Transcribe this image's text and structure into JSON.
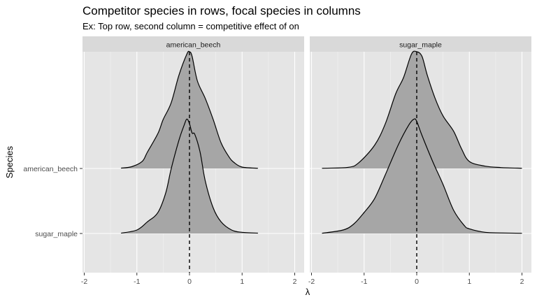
{
  "chart_data": {
    "type": "ridgeline",
    "title": "Competitor species in rows, focal species in columns",
    "subtitle": "Ex: Top row, second column = competitive effect of on",
    "xlabel": "λ",
    "ylabel": "Species",
    "xlim": [
      -2,
      2
    ],
    "x_ticks": [
      -2,
      -1,
      0,
      1,
      2
    ],
    "y_categories": [
      "american_beech",
      "sugar_maple"
    ],
    "facets": [
      "american_beech",
      "sugar_maple"
    ],
    "reference_line_x": 0,
    "fill_color": "#a6a6a6",
    "panel_background": "#e5e5e5",
    "strip_background": "#d9d9d9",
    "densities": [
      {
        "facet": "american_beech",
        "competitor": "american_beech",
        "x": [
          -1.3,
          -1.1,
          -0.9,
          -0.8,
          -0.6,
          -0.5,
          -0.35,
          -0.2,
          -0.05,
          0,
          0.05,
          0.15,
          0.3,
          0.45,
          0.6,
          0.75,
          0.85,
          1.0,
          1.3
        ],
        "density": [
          0.003,
          0.015,
          0.06,
          0.14,
          0.3,
          0.42,
          0.56,
          0.8,
          0.98,
          1.0,
          0.96,
          0.75,
          0.6,
          0.42,
          0.22,
          0.1,
          0.05,
          0.012,
          0.002
        ]
      },
      {
        "facet": "american_beech",
        "competitor": "sugar_maple",
        "x": [
          -1.3,
          -1.0,
          -0.8,
          -0.6,
          -0.45,
          -0.35,
          -0.2,
          -0.1,
          -0.05,
          0,
          0.05,
          0.1,
          0.2,
          0.3,
          0.45,
          0.6,
          0.8,
          1.0,
          1.3
        ],
        "density": [
          0.003,
          0.03,
          0.1,
          0.18,
          0.35,
          0.55,
          0.8,
          0.93,
          0.98,
          0.94,
          0.86,
          0.85,
          0.7,
          0.45,
          0.22,
          0.1,
          0.03,
          0.01,
          0.003
        ]
      },
      {
        "facet": "sugar_maple",
        "competitor": "american_beech",
        "x": [
          -1.8,
          -1.3,
          -1.1,
          -0.8,
          -0.6,
          -0.4,
          -0.25,
          -0.1,
          0,
          0.1,
          0.2,
          0.35,
          0.5,
          0.7,
          0.85,
          1.0,
          1.3,
          1.6,
          2.0
        ],
        "density": [
          0.002,
          0.01,
          0.05,
          0.2,
          0.38,
          0.64,
          0.78,
          0.98,
          1.0,
          0.96,
          0.8,
          0.6,
          0.45,
          0.32,
          0.17,
          0.06,
          0.02,
          0.008,
          0.002
        ]
      },
      {
        "facet": "sugar_maple",
        "competitor": "sugar_maple",
        "x": [
          -1.8,
          -1.4,
          -1.2,
          -1.0,
          -0.8,
          -0.6,
          -0.35,
          -0.15,
          -0.05,
          0,
          0.1,
          0.3,
          0.5,
          0.7,
          0.9,
          1.0,
          1.3,
          1.6,
          2.0
        ],
        "density": [
          0.002,
          0.03,
          0.08,
          0.18,
          0.3,
          0.5,
          0.76,
          0.93,
          0.98,
          0.96,
          0.84,
          0.62,
          0.42,
          0.2,
          0.07,
          0.04,
          0.01,
          0.005,
          0.002
        ]
      }
    ]
  }
}
